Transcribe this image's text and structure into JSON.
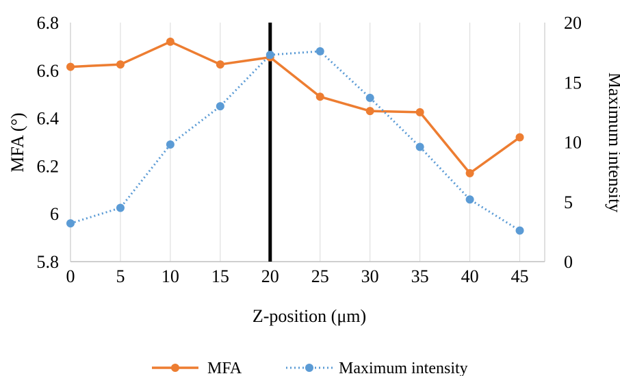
{
  "chart_data": {
    "type": "line",
    "xlabel": "Z-position (μm)",
    "ylabel_left": "MFA (°)",
    "ylabel_right": "Maximum intensity",
    "x": [
      0,
      5,
      10,
      15,
      20,
      25,
      30,
      35,
      40,
      45
    ],
    "x_tick_labels": [
      "0",
      "5",
      "10",
      "15",
      "20",
      "25",
      "30",
      "35",
      "40",
      "45"
    ],
    "y_left_ticks": [
      "5.8",
      "6",
      "6.2",
      "6.4",
      "6.6",
      "6.8"
    ],
    "y_right_ticks": [
      "0",
      "5",
      "10",
      "15",
      "20"
    ],
    "ylim_left": [
      5.8,
      6.8
    ],
    "ylim_right": [
      0,
      20
    ],
    "grid": "vertical",
    "marker_line_x": 20,
    "legend_position": "bottom",
    "series": [
      {
        "name": "MFA",
        "axis": "left",
        "style": "solid",
        "color": "#ED7D31",
        "values": [
          6.615,
          6.625,
          6.72,
          6.625,
          6.655,
          6.49,
          6.43,
          6.425,
          6.17,
          6.32
        ]
      },
      {
        "name": "Maximum intensity",
        "axis": "right",
        "style": "dotted",
        "color": "#5B9BD5",
        "values": [
          3.2,
          4.5,
          9.8,
          13.0,
          17.3,
          17.6,
          13.7,
          9.6,
          5.2,
          2.6
        ]
      }
    ]
  }
}
